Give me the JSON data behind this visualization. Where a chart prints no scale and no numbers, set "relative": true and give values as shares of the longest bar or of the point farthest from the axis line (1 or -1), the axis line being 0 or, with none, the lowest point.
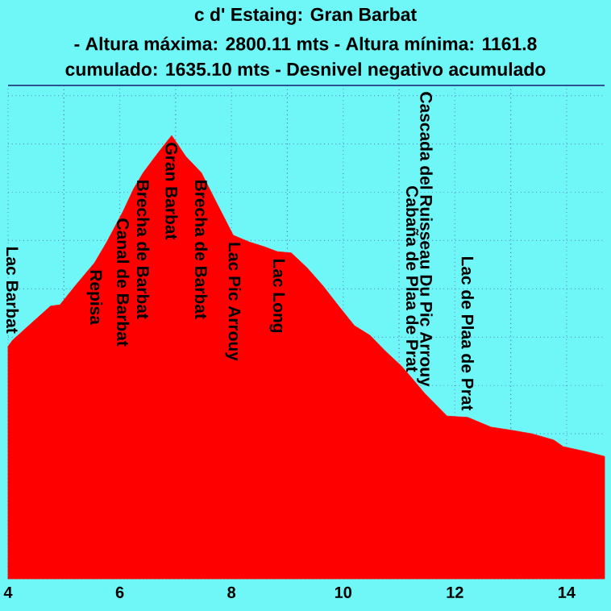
{
  "chart_data": {
    "type": "area",
    "title": "c d' Estaing: Gran Barbat",
    "subtitle": "- Altura máxima: 2800.11 mts - Altura mínima: 1161.8",
    "relative": true,
    "color": "#ff0000",
    "x": [
      4.0,
      4.08,
      4.37,
      4.76,
      4.93,
      5.21,
      5.55,
      5.77,
      6.06,
      6.25,
      6.42,
      6.68,
      6.93,
      7.18,
      7.46,
      7.75,
      8.03,
      8.31,
      8.59,
      8.82,
      9.07,
      9.35,
      9.63,
      9.92,
      10.2,
      10.48,
      10.76,
      11.04,
      11.24,
      11.46,
      11.86,
      12.23,
      12.65,
      13.01,
      13.38,
      13.77,
      13.94,
      14.34,
      14.68
    ],
    "values": [
      0.524,
      0.538,
      0.571,
      0.615,
      0.618,
      0.662,
      0.713,
      0.76,
      0.829,
      0.88,
      0.916,
      0.96,
      1.0,
      0.953,
      0.916,
      0.844,
      0.775,
      0.76,
      0.749,
      0.738,
      0.735,
      0.702,
      0.662,
      0.615,
      0.571,
      0.549,
      0.513,
      0.48,
      0.451,
      0.418,
      0.367,
      0.364,
      0.342,
      0.335,
      0.327,
      0.313,
      0.298,
      0.287,
      0.276
    ],
    "xlim": [
      4,
      14.68
    ],
    "xticks": [
      4,
      6,
      8,
      10,
      12,
      14
    ],
    "grid": true,
    "annotations": [
      "cumulado: 1635.10 mts - Desnivel negativo acumulado",
      {
        "text": "Lac Barbat",
        "x": 4.08,
        "y": 0.538
      },
      {
        "text": "Repisa",
        "x": 5.55,
        "y": 0.713
      },
      {
        "text": "Canal de Barbat",
        "x": 6.06,
        "y": 0.829
      },
      {
        "text": "Brecha de Barbat",
        "x": 6.42,
        "y": 0.916
      },
      {
        "text": "Gran Barbat",
        "x": 6.93,
        "y": 1.0
      },
      {
        "text": "Brecha de Barbat",
        "x": 7.46,
        "y": 0.916
      },
      {
        "text": "Lac Pic Arrouy",
        "x": 8.03,
        "y": 0.775
      },
      {
        "text": "Lac Long",
        "x": 8.82,
        "y": 0.738
      },
      {
        "text": "Cabaña de Plaa de Prat",
        "x": 11.24,
        "y": 0.451
      },
      {
        "text": "Cascada del Ruisseau Du Pic Arrouy",
        "x": 11.46,
        "y": 0.418
      },
      {
        "text": "Lac de Plaa de Prat",
        "x": 12.23,
        "y": 0.364
      }
    ]
  }
}
